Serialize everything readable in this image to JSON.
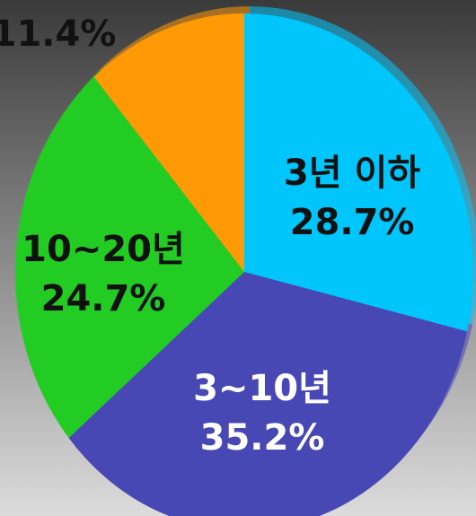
{
  "chart_data": {
    "type": "pie",
    "categories": [
      "3년 이하",
      "3~10년",
      "10~20년",
      null
    ],
    "values": [
      28.7,
      35.2,
      24.7,
      11.4
    ],
    "value_labels": [
      "28.7%",
      "35.2%",
      "24.7%",
      "11.4%"
    ],
    "colors": [
      "#00c6fb",
      "#4848b4",
      "#22cc22",
      "#ff9a06"
    ]
  }
}
